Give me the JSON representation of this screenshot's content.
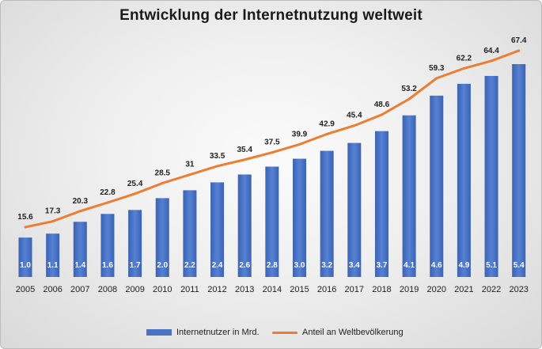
{
  "chart_data": {
    "type": "bar",
    "title": "Entwicklung der Internetnutzung weltweit",
    "categories": [
      "2005",
      "2006",
      "2007",
      "2008",
      "2009",
      "2010",
      "2011",
      "2012",
      "2013",
      "2014",
      "2015",
      "2016",
      "2017",
      "2018",
      "2019",
      "2020",
      "2021",
      "2022",
      "2023"
    ],
    "series": [
      {
        "name": "Internetnutzer in Mrd.",
        "type": "bar",
        "color": "#4a72c4",
        "values": [
          1.0,
          1.1,
          1.4,
          1.6,
          1.7,
          2.0,
          2.2,
          2.4,
          2.6,
          2.8,
          3.0,
          3.2,
          3.4,
          3.7,
          4.1,
          4.6,
          4.9,
          5.1,
          5.4
        ],
        "labels": [
          "1.0",
          "1.1",
          "1.4",
          "1.6",
          "1.7",
          "2.0",
          "2.2",
          "2.4",
          "2.6",
          "2.8",
          "3.0",
          "3.2",
          "3.4",
          "3.7",
          "4.1",
          "4.6",
          "4.9",
          "5.1",
          "5.4"
        ]
      },
      {
        "name": "Anteil an Weltbevölkerung",
        "type": "line",
        "color": "#ed7d31",
        "values": [
          15.6,
          17.3,
          20.3,
          22.8,
          25.4,
          28.5,
          31,
          33.5,
          35.4,
          37.5,
          39.9,
          42.9,
          45.4,
          48.6,
          53.2,
          59.3,
          62.2,
          64.4,
          67.4
        ],
        "labels": [
          "15.6",
          "17.3",
          "20.3",
          "22.8",
          "25.4",
          "28.5",
          "31",
          "33.5",
          "35.4",
          "37.5",
          "39.9",
          "42.9",
          "45.4",
          "48.6",
          "53.2",
          "59.3",
          "62.2",
          "64.4",
          "67.4"
        ]
      }
    ],
    "ylim": [
      0,
      5.4
    ],
    "line_ylim": [
      15.6,
      67.4
    ],
    "grid": false,
    "legend": "bottom"
  }
}
